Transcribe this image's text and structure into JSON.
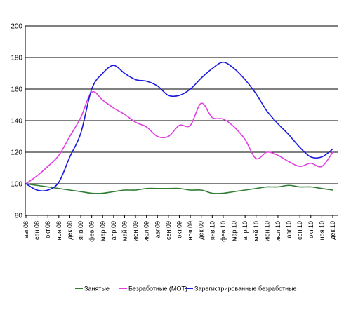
{
  "chart_data": {
    "type": "line",
    "title": "",
    "xlabel": "",
    "ylabel": "",
    "ylim": [
      80,
      200
    ],
    "yticks": [
      80,
      100,
      120,
      140,
      160,
      180,
      200
    ],
    "grid": "horizontal",
    "legend_position": "bottom",
    "categories": [
      "авг.08",
      "сен.08",
      "окт.08",
      "ноя.08",
      "дек.08",
      "янв.09",
      "фев.09",
      "мар.09",
      "апр.09",
      "май.09",
      "июн.09",
      "июл.09",
      "авг.09",
      "сен.09",
      "окт.09",
      "ноя.09",
      "дек.09",
      "янв.10",
      "фев.10",
      "мар.10",
      "апр.10",
      "май.10",
      "июн.10",
      "июл.10",
      "авг.10",
      "сен.10",
      "окт.10",
      "ноя.10",
      "дек.10"
    ],
    "series": [
      {
        "name": "Занятые",
        "color": "#2e7d32",
        "values": [
          100,
          99,
          98,
          97,
          96,
          95,
          94,
          94,
          95,
          96,
          96,
          97,
          97,
          97,
          97,
          96,
          96,
          94,
          94,
          95,
          96,
          97,
          98,
          98,
          99,
          98,
          98,
          97,
          96
        ]
      },
      {
        "name": "Безработные (МОТ)",
        "color": "#e040e0",
        "values": [
          100,
          105,
          111,
          118,
          130,
          142,
          158,
          153,
          148,
          144,
          139,
          136,
          130,
          130,
          137,
          137,
          151,
          142,
          141,
          136,
          128,
          116,
          120,
          118,
          114,
          111,
          113,
          111,
          120
        ]
      },
      {
        "name": "Зарегистрированные безработные",
        "color": "#1a1adc",
        "values": [
          100,
          96,
          96,
          101,
          117,
          132,
          160,
          170,
          175,
          170,
          166,
          165,
          162,
          156,
          156,
          160,
          167,
          173,
          177,
          173,
          166,
          157,
          146,
          138,
          131,
          123,
          117,
          117,
          122
        ]
      }
    ]
  }
}
